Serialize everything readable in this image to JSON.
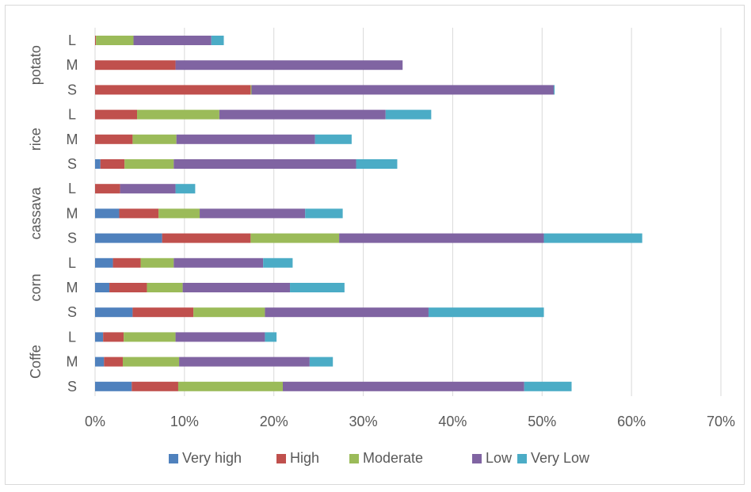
{
  "chart_data": {
    "type": "bar",
    "orientation": "horizontal",
    "stacked": true,
    "title": "",
    "xlabel": "",
    "ylabel": "",
    "xlim": [
      0,
      0.7
    ],
    "x_ticks": [
      "0%",
      "10%",
      "20%",
      "30%",
      "40%",
      "50%",
      "60%",
      "70%"
    ],
    "grid": true,
    "legend_position": "bottom",
    "groups": [
      {
        "name": "potato",
        "rows": [
          "L",
          "M",
          "S"
        ]
      },
      {
        "name": "rice",
        "rows": [
          "L",
          "M",
          "S"
        ]
      },
      {
        "name": "cassava",
        "rows": [
          "L",
          "M",
          "S"
        ]
      },
      {
        "name": "corn",
        "rows": [
          "L",
          "M",
          "S"
        ]
      },
      {
        "name": "Coffe",
        "rows": [
          "L",
          "M",
          "S"
        ]
      }
    ],
    "categories": [
      "potato L",
      "potato M",
      "potato S",
      "rice L",
      "rice M",
      "rice S",
      "cassava L",
      "cassava M",
      "cassava S",
      "corn L",
      "corn M",
      "corn S",
      "Coffe L",
      "Coffe M",
      "Coffe S"
    ],
    "series": [
      {
        "name": "Very high",
        "color": "#4f81bd",
        "values": [
          0.0,
          0.0,
          0.0,
          0.0,
          0.0,
          0.006,
          0.0,
          0.027,
          0.075,
          0.02,
          0.016,
          0.042,
          0.009,
          0.01,
          0.041
        ]
      },
      {
        "name": "High",
        "color": "#c0504d",
        "values": [
          0.001,
          0.09,
          0.174,
          0.047,
          0.042,
          0.027,
          0.028,
          0.044,
          0.099,
          0.031,
          0.042,
          0.068,
          0.023,
          0.021,
          0.052
        ]
      },
      {
        "name": "Moderate",
        "color": "#9bbb59",
        "values": [
          0.042,
          0.0,
          0.001,
          0.092,
          0.049,
          0.055,
          0.0,
          0.046,
          0.099,
          0.037,
          0.04,
          0.08,
          0.058,
          0.063,
          0.117
        ]
      },
      {
        "name": "Low",
        "color": "#8064a2",
        "values": [
          0.087,
          0.254,
          0.338,
          0.186,
          0.155,
          0.204,
          0.062,
          0.118,
          0.229,
          0.1,
          0.12,
          0.183,
          0.1,
          0.146,
          0.27
        ]
      },
      {
        "name": "Very Low",
        "color": "#4bacc6",
        "values": [
          0.014,
          0.0,
          0.001,
          0.051,
          0.041,
          0.046,
          0.022,
          0.042,
          0.11,
          0.033,
          0.061,
          0.129,
          0.013,
          0.026,
          0.053
        ]
      }
    ]
  }
}
